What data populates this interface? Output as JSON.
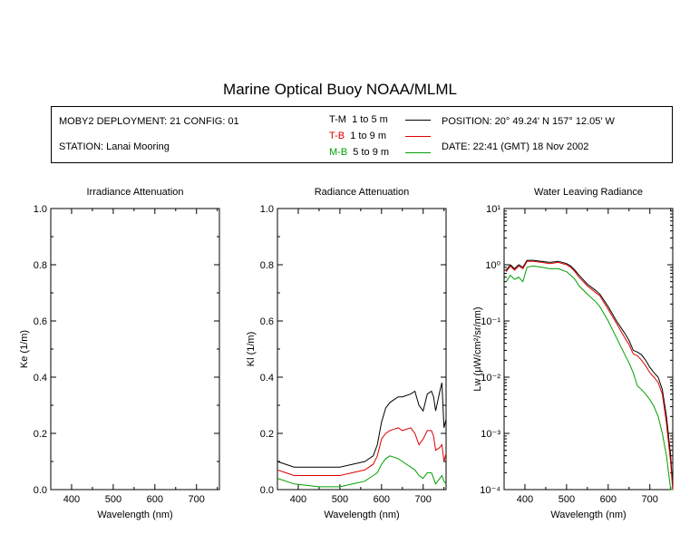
{
  "title": "Marine Optical Buoy NOAA/MLML",
  "info": {
    "deployment": "MOBY2 DEPLOYMENT: 21 CONFIG: 01",
    "station": "STATION: Lanai Mooring",
    "position": "POSITION: 20° 49.24' N   157° 12.05' W",
    "date": "DATE: 22:41 (GMT) 18 Nov 2002"
  },
  "legend": [
    {
      "code": "T-M",
      "range": "1 to 5  m",
      "color": "#000000"
    },
    {
      "code": "T-B",
      "range": "1 to 9  m",
      "color": "#dd0000"
    },
    {
      "code": "M-B",
      "range": "5 to 9  m",
      "color": "#00a000"
    }
  ],
  "chart_data": [
    {
      "type": "line",
      "title": "Irradiance Attenuation",
      "xlabel": "Wavelength (nm)",
      "ylabel": "Ke  (1/m)",
      "xlim": [
        350,
        755
      ],
      "ylim": [
        0,
        1.0
      ],
      "xticks": [
        "400",
        "500",
        "600",
        "700"
      ],
      "yticks": [
        "0.0",
        "0.2",
        "0.4",
        "0.6",
        "0.8",
        "1.0"
      ],
      "series": []
    },
    {
      "type": "line",
      "title": "Radiance Attenuation",
      "xlabel": "Wavelength (nm)",
      "ylabel": "Kl  (1/m)",
      "xlim": [
        350,
        755
      ],
      "ylim": [
        0,
        1.0
      ],
      "xticks": [
        "400",
        "500",
        "600",
        "700"
      ],
      "yticks": [
        "0.0",
        "0.2",
        "0.4",
        "0.6",
        "0.8",
        "1.0"
      ],
      "series": [
        {
          "name": "T-M",
          "color": "#000000",
          "x": [
            350,
            370,
            390,
            450,
            500,
            530,
            560,
            580,
            590,
            600,
            610,
            620,
            640,
            650,
            670,
            680,
            690,
            700,
            710,
            720,
            725,
            730,
            740,
            745,
            750,
            755
          ],
          "y": [
            0.1,
            0.09,
            0.08,
            0.08,
            0.08,
            0.09,
            0.1,
            0.12,
            0.16,
            0.24,
            0.29,
            0.31,
            0.33,
            0.33,
            0.34,
            0.35,
            0.3,
            0.28,
            0.34,
            0.35,
            0.33,
            0.28,
            0.35,
            0.38,
            0.22,
            0.25
          ]
        },
        {
          "name": "T-B",
          "color": "#dd0000",
          "x": [
            350,
            370,
            390,
            450,
            500,
            530,
            560,
            580,
            590,
            600,
            610,
            620,
            640,
            650,
            670,
            680,
            690,
            700,
            710,
            720,
            725,
            730,
            740,
            745,
            750,
            755
          ],
          "y": [
            0.07,
            0.06,
            0.05,
            0.05,
            0.05,
            0.06,
            0.07,
            0.09,
            0.12,
            0.18,
            0.2,
            0.21,
            0.22,
            0.21,
            0.22,
            0.2,
            0.16,
            0.18,
            0.21,
            0.21,
            0.19,
            0.14,
            0.15,
            0.16,
            0.1,
            0.13
          ]
        },
        {
          "name": "M-B",
          "color": "#00a000",
          "x": [
            350,
            370,
            390,
            450,
            500,
            530,
            560,
            580,
            590,
            600,
            610,
            620,
            640,
            650,
            670,
            680,
            690,
            700,
            710,
            720,
            725,
            730,
            740,
            745,
            750,
            755
          ],
          "y": [
            0.04,
            0.03,
            0.02,
            0.01,
            0.01,
            0.02,
            0.03,
            0.05,
            0.06,
            0.09,
            0.11,
            0.12,
            0.11,
            0.1,
            0.08,
            0.07,
            0.05,
            0.04,
            0.06,
            0.06,
            0.04,
            0.02,
            0.04,
            0.05,
            0.03,
            0.02
          ]
        }
      ]
    },
    {
      "type": "line",
      "title": "Water Leaving Radiance",
      "xlabel": "Wavelength (nm)",
      "ylabel": "Lw  (μW/cm²/sr/nm)",
      "yscale": "log",
      "xlim": [
        350,
        755
      ],
      "ylim": [
        0.0001,
        10
      ],
      "xticks": [
        "400",
        "500",
        "600",
        "700"
      ],
      "yticks": [
        "10⁻⁴",
        "10⁻³",
        "10⁻²",
        "10⁻¹",
        "10⁰",
        "10¹"
      ],
      "series": [
        {
          "name": "T-M",
          "color": "#000000",
          "x": [
            355,
            365,
            375,
            385,
            395,
            405,
            420,
            440,
            460,
            480,
            500,
            510,
            520,
            530,
            550,
            570,
            580,
            600,
            620,
            640,
            650,
            660,
            670,
            680,
            690,
            700,
            710,
            720,
            730,
            740,
            750,
            755
          ],
          "y": [
            0.8,
            1.0,
            0.85,
            1.0,
            0.9,
            1.2,
            1.2,
            1.15,
            1.1,
            1.15,
            1.05,
            0.95,
            0.8,
            0.65,
            0.45,
            0.35,
            0.3,
            0.18,
            0.1,
            0.06,
            0.045,
            0.03,
            0.028,
            0.025,
            0.02,
            0.015,
            0.012,
            0.01,
            0.006,
            0.002,
            0.0004,
            0.0001
          ]
        },
        {
          "name": "T-B",
          "color": "#dd0000",
          "x": [
            355,
            365,
            375,
            385,
            395,
            405,
            420,
            440,
            460,
            480,
            500,
            510,
            520,
            530,
            550,
            570,
            580,
            600,
            620,
            640,
            650,
            660,
            670,
            680,
            690,
            700,
            710,
            720,
            730,
            740,
            750,
            755
          ],
          "y": [
            0.75,
            0.95,
            0.8,
            0.95,
            0.85,
            1.15,
            1.15,
            1.1,
            1.05,
            1.1,
            1.0,
            0.9,
            0.75,
            0.6,
            0.42,
            0.32,
            0.28,
            0.16,
            0.09,
            0.05,
            0.038,
            0.026,
            0.024,
            0.02,
            0.016,
            0.012,
            0.01,
            0.008,
            0.005,
            0.0015,
            0.0003,
            0.0001
          ]
        },
        {
          "name": "M-B",
          "color": "#00a000",
          "x": [
            355,
            365,
            375,
            385,
            395,
            405,
            420,
            440,
            460,
            480,
            500,
            510,
            520,
            530,
            550,
            570,
            580,
            600,
            620,
            640,
            650,
            660,
            670,
            680,
            690,
            700,
            710,
            720,
            730,
            740,
            750,
            755
          ],
          "y": [
            0.5,
            0.65,
            0.55,
            0.6,
            0.5,
            0.9,
            0.95,
            0.9,
            0.85,
            0.85,
            0.75,
            0.65,
            0.55,
            0.42,
            0.3,
            0.22,
            0.18,
            0.1,
            0.05,
            0.025,
            0.018,
            0.012,
            0.007,
            0.006,
            0.005,
            0.004,
            0.003,
            0.002,
            0.001,
            0.0004,
            0.0001,
            0.0001
          ]
        }
      ]
    }
  ]
}
